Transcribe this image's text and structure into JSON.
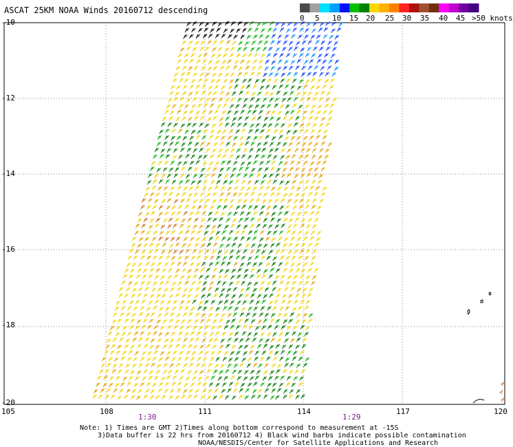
{
  "title": "ASCAT 25KM NOAA Winds 20160712 descending",
  "legend": {
    "colors": [
      "#4a4a4a",
      "#a0a0a0",
      "#00e0ff",
      "#00a0ff",
      "#0010ff",
      "#00c000",
      "#008000",
      "#ffd700",
      "#ffb000",
      "#ff8000",
      "#ff2020",
      "#b01010",
      "#a05030",
      "#703010",
      "#ff00ff",
      "#c000d0",
      "#7000a0",
      "#400080"
    ],
    "labels": [
      "0",
      "5",
      "10",
      "15",
      "20",
      "25",
      "30",
      "35",
      "40",
      "45",
      ">50 knots"
    ]
  },
  "lat_labels": [
    "-10",
    "-12",
    "-14",
    "-16",
    "-18",
    "-20"
  ],
  "lon_labels": [
    "105",
    "108",
    "111",
    "114",
    "117",
    "120"
  ],
  "time_labels": [
    "1:30",
    "1:29"
  ],
  "notes": [
    "Note: 1) Times are GMT 2)Times along bottom correspond to measurement at -15S",
    "3)Data buffer is 22 hrs from 20160712 4) Black wind barbs indicate possible contamination",
    "NOAA/NESDIS/Center for Satellite Applications and Research"
  ],
  "barb_colors": {
    "yellow": "#f2d200",
    "orange": "#e8a000",
    "dark_orange": "#d06a20",
    "green": "#007a00",
    "bright_green": "#00b000",
    "blue": "#1040ff",
    "light_blue": "#0090ff",
    "black": "#000000"
  }
}
